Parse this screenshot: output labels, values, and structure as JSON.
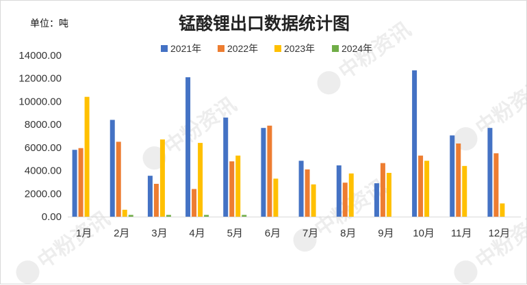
{
  "chart_data": {
    "type": "bar",
    "title": "锰酸锂出口数据统计图",
    "unit_label": "单位：吨",
    "categories": [
      "1月",
      "2月",
      "3月",
      "4月",
      "5月",
      "6月",
      "7月",
      "8月",
      "9月",
      "10月",
      "11月",
      "12月"
    ],
    "series": [
      {
        "name": "2021年",
        "color": "#4472c4",
        "values": [
          5800,
          8400,
          3550,
          12100,
          8600,
          7700,
          4850,
          4450,
          2900,
          12700,
          7050,
          7700
        ]
      },
      {
        "name": "2022年",
        "color": "#ed7d31",
        "values": [
          5950,
          6500,
          2850,
          2400,
          4800,
          7900,
          4100,
          2950,
          4650,
          5300,
          6350,
          5500
        ]
      },
      {
        "name": "2023年",
        "color": "#ffc000",
        "values": [
          10400,
          600,
          6700,
          6400,
          5300,
          3300,
          2800,
          3750,
          3800,
          4850,
          4400,
          1150
        ]
      },
      {
        "name": "2024年",
        "color": "#70ad47",
        "values": [
          0,
          150,
          150,
          150,
          150,
          0,
          0,
          0,
          0,
          0,
          0,
          0
        ]
      }
    ],
    "ylim": [
      0,
      14000
    ],
    "yticks": [
      "0.00",
      "2000.00",
      "4000.00",
      "6000.00",
      "8000.00",
      "10000.00",
      "12000.00",
      "14000.00"
    ],
    "grid": false,
    "legend_position": "top"
  },
  "watermark": "中粉资讯"
}
